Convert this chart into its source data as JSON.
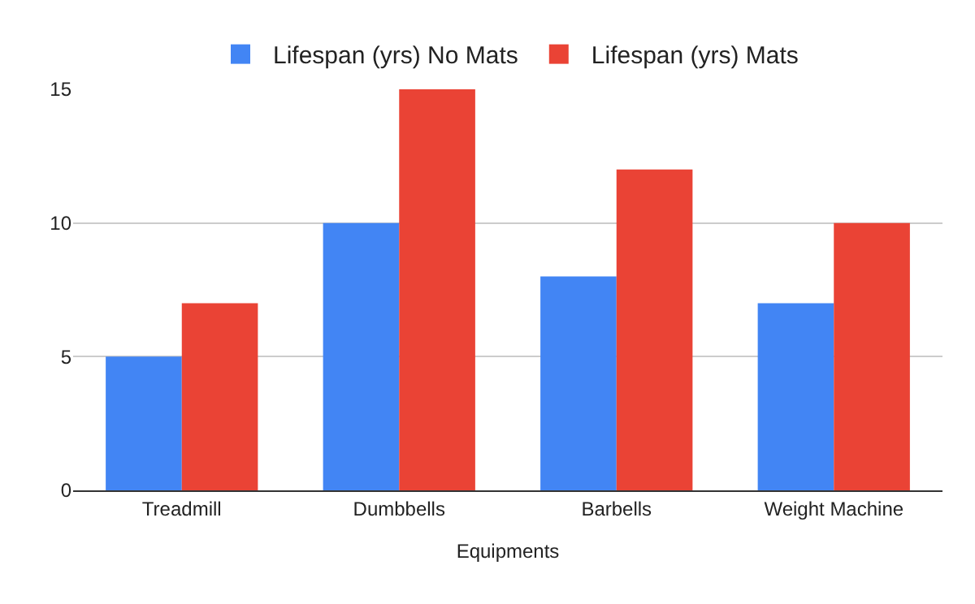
{
  "chart_data": {
    "type": "bar",
    "xlabel": "Equipments",
    "categories": [
      "Treadmill",
      "Dumbbells",
      "Barbells",
      "Weight Machine"
    ],
    "series": [
      {
        "name": "Lifespan (yrs) No Mats",
        "color": "#4285f4",
        "values": [
          5,
          10,
          8,
          7
        ]
      },
      {
        "name": "Lifespan (yrs) Mats",
        "color": "#ea4335",
        "values": [
          7,
          15,
          12,
          10
        ]
      }
    ],
    "ylim": [
      0,
      15
    ],
    "yticks": [
      0,
      5,
      10,
      15
    ],
    "grid": "y",
    "legend": "top"
  }
}
